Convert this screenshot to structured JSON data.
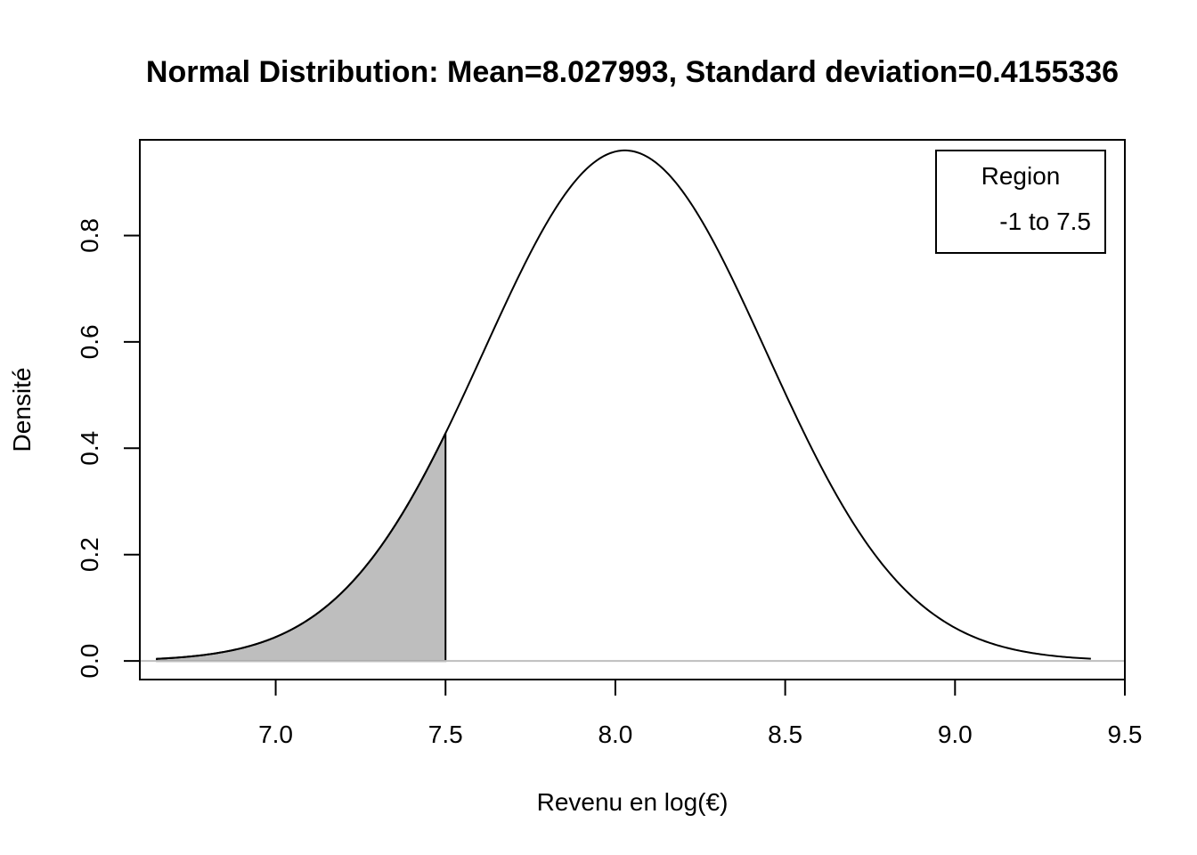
{
  "chart_data": {
    "type": "area",
    "title": "Normal Distribution:  Mean=8.027993, Standard deviation=0.4155336",
    "xlabel": "Revenu en log(€)",
    "ylabel": "Densité",
    "distribution": {
      "mean": 8.027993,
      "sd": 0.4155336
    },
    "curve_range": [
      6.65,
      9.4
    ],
    "shaded_region": [
      -1,
      7.5
    ],
    "xlim": [
      6.6,
      9.5
    ],
    "ylim": [
      -0.035,
      0.98
    ],
    "x_ticks": [
      7.0,
      7.5,
      8.0,
      8.5,
      9.0,
      9.5
    ],
    "x_tick_labels": [
      "7.0",
      "7.5",
      "8.0",
      "8.5",
      "9.0",
      "9.5"
    ],
    "y_ticks": [
      0.0,
      0.2,
      0.4,
      0.6,
      0.8
    ],
    "y_tick_labels": [
      "0.0",
      "0.2",
      "0.4",
      "0.6",
      "0.8"
    ],
    "legend": {
      "title": "Region",
      "entries": [
        "-1 to 7.5"
      ],
      "position": "top-right"
    },
    "colors": {
      "shade": "#bebebe",
      "baseline": "#bebebe",
      "curve": "#000000"
    },
    "grid": false
  }
}
